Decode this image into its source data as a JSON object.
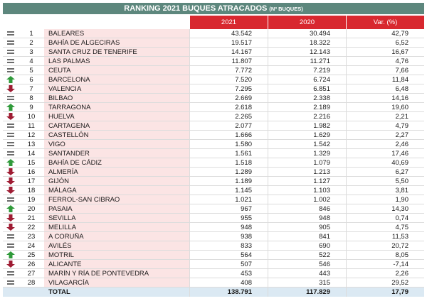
{
  "header": {
    "title": "RANKING 2021 BUQUES ATRACADOS",
    "subtitle": "(Nº BUQUES)"
  },
  "table": {
    "columns": [
      "2021",
      "2020",
      "Var. (%)"
    ],
    "rows": [
      {
        "rank": "1",
        "trend": "equal",
        "port": "BALEARES",
        "v2021": "43.542",
        "v2020": "30.494",
        "var": "42,79"
      },
      {
        "rank": "2",
        "trend": "equal",
        "port": "BAHÍA DE ALGECIRAS",
        "v2021": "19.517",
        "v2020": "18.322",
        "var": "6,52"
      },
      {
        "rank": "3",
        "trend": "equal",
        "port": "SANTA CRUZ DE TENERIFE",
        "v2021": "14.167",
        "v2020": "12.143",
        "var": "16,67"
      },
      {
        "rank": "4",
        "trend": "equal",
        "port": "LAS PALMAS",
        "v2021": "11.807",
        "v2020": "11.271",
        "var": "4,76"
      },
      {
        "rank": "5",
        "trend": "equal",
        "port": "CEUTA",
        "v2021": "7.772",
        "v2020": "7.219",
        "var": "7,66"
      },
      {
        "rank": "6",
        "trend": "up",
        "port": "BARCELONA",
        "v2021": "7.520",
        "v2020": "6.724",
        "var": "11,84"
      },
      {
        "rank": "7",
        "trend": "down",
        "port": "VALENCIA",
        "v2021": "7.295",
        "v2020": "6.851",
        "var": "6,48"
      },
      {
        "rank": "8",
        "trend": "equal",
        "port": "BILBAO",
        "v2021": "2.669",
        "v2020": "2.338",
        "var": "14,16"
      },
      {
        "rank": "9",
        "trend": "up",
        "port": "TARRAGONA",
        "v2021": "2.618",
        "v2020": "2.189",
        "var": "19,60"
      },
      {
        "rank": "10",
        "trend": "down",
        "port": "HUELVA",
        "v2021": "2.265",
        "v2020": "2.216",
        "var": "2,21"
      },
      {
        "rank": "11",
        "trend": "equal",
        "port": "CARTAGENA",
        "v2021": "2.077",
        "v2020": "1.982",
        "var": "4,79"
      },
      {
        "rank": "12",
        "trend": "equal",
        "port": "CASTELLÓN",
        "v2021": "1.666",
        "v2020": "1.629",
        "var": "2,27"
      },
      {
        "rank": "13",
        "trend": "equal",
        "port": "VIGO",
        "v2021": "1.580",
        "v2020": "1.542",
        "var": "2,46"
      },
      {
        "rank": "14",
        "trend": "equal",
        "port": "SANTANDER",
        "v2021": "1.561",
        "v2020": "1.329",
        "var": "17,46"
      },
      {
        "rank": "15",
        "trend": "up",
        "port": "BAHÍA DE CÁDIZ",
        "v2021": "1.518",
        "v2020": "1.079",
        "var": "40,69"
      },
      {
        "rank": "16",
        "trend": "down",
        "port": "ALMERÍA",
        "v2021": "1.289",
        "v2020": "1.213",
        "var": "6,27"
      },
      {
        "rank": "17",
        "trend": "down",
        "port": "GIJÓN",
        "v2021": "1.189",
        "v2020": "1.127",
        "var": "5,50"
      },
      {
        "rank": "18",
        "trend": "down",
        "port": "MÁLAGA",
        "v2021": "1.145",
        "v2020": "1.103",
        "var": "3,81"
      },
      {
        "rank": "19",
        "trend": "equal",
        "port": "FERROL-SAN CIBRAO",
        "v2021": "1.021",
        "v2020": "1.002",
        "var": "1,90"
      },
      {
        "rank": "20",
        "trend": "up",
        "port": "PASAIA",
        "v2021": "967",
        "v2020": "846",
        "var": "14,30"
      },
      {
        "rank": "21",
        "trend": "down",
        "port": "SEVILLA",
        "v2021": "955",
        "v2020": "948",
        "var": "0,74"
      },
      {
        "rank": "22",
        "trend": "down",
        "port": "MELILLA",
        "v2021": "948",
        "v2020": "905",
        "var": "4,75"
      },
      {
        "rank": "23",
        "trend": "equal",
        "port": "A CORUÑA",
        "v2021": "938",
        "v2020": "841",
        "var": "11,53"
      },
      {
        "rank": "24",
        "trend": "equal",
        "port": "AVILÉS",
        "v2021": "833",
        "v2020": "690",
        "var": "20,72"
      },
      {
        "rank": "25",
        "trend": "up",
        "port": "MOTRIL",
        "v2021": "564",
        "v2020": "522",
        "var": "8,05"
      },
      {
        "rank": "26",
        "trend": "down",
        "port": "ALICANTE",
        "v2021": "507",
        "v2020": "546",
        "var": "-7,14"
      },
      {
        "rank": "27",
        "trend": "equal",
        "port": "MARÍN Y RÍA DE PONTEVEDRA",
        "v2021": "453",
        "v2020": "443",
        "var": "2,26"
      },
      {
        "rank": "28",
        "trend": "equal",
        "port": "VILAGARCÍA",
        "v2021": "408",
        "v2020": "315",
        "var": "29,52"
      }
    ],
    "total": {
      "label": "TOTAL",
      "v2021": "138.791",
      "v2020": "117.829",
      "var": "17,79"
    }
  }
}
